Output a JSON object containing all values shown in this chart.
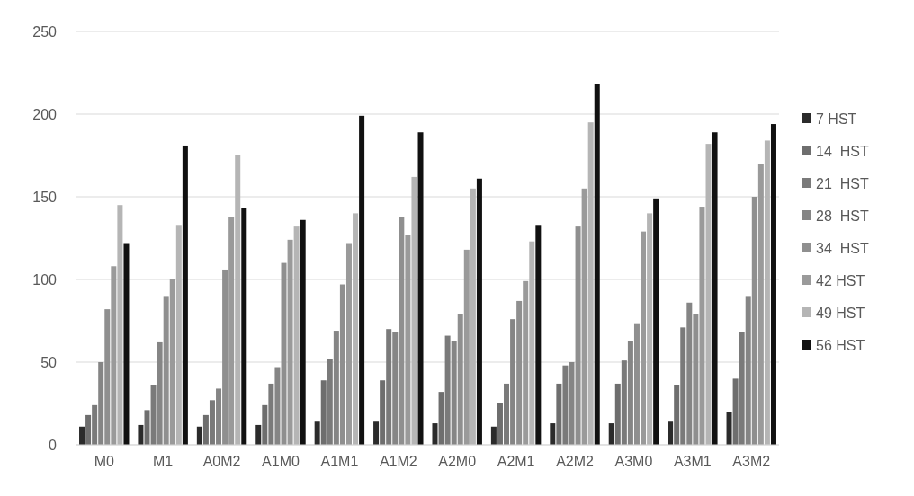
{
  "chart_data": {
    "type": "bar",
    "categories": [
      "M0",
      "M1",
      "A0M2",
      "A1M0",
      "A1M1",
      "A1M2",
      "A2M0",
      "A2M1",
      "A2M2",
      "A3M0",
      "A3M1",
      "A3M2"
    ],
    "series": [
      {
        "name": "7 HST",
        "color": "#2b2b2b",
        "values": [
          11,
          12,
          11,
          12,
          14,
          14,
          13,
          11,
          13,
          13,
          14,
          20
        ]
      },
      {
        "name": "14  HST",
        "color": "#6e6e6e",
        "values": [
          18,
          21,
          18,
          24,
          39,
          39,
          32,
          25,
          37,
          37,
          36,
          40
        ]
      },
      {
        "name": "21  HST",
        "color": "#7a7a7a",
        "values": [
          24,
          36,
          27,
          37,
          52,
          70,
          66,
          37,
          48,
          51,
          71,
          68
        ]
      },
      {
        "name": "28  HST",
        "color": "#858585",
        "values": [
          50,
          62,
          34,
          47,
          69,
          68,
          63,
          76,
          50,
          63,
          86,
          90
        ]
      },
      {
        "name": "34  HST",
        "color": "#8f8f8f",
        "values": [
          82,
          90,
          106,
          110,
          97,
          138,
          79,
          87,
          132,
          73,
          79,
          150
        ]
      },
      {
        "name": "42 HST",
        "color": "#9a9a9a",
        "values": [
          108,
          100,
          138,
          124,
          122,
          127,
          118,
          99,
          155,
          129,
          144,
          170
        ]
      },
      {
        "name": "49 HST",
        "color": "#b5b5b5",
        "values": [
          145,
          133,
          175,
          132,
          140,
          162,
          155,
          123,
          195,
          140,
          182,
          184
        ]
      },
      {
        "name": "56 HST",
        "color": "#111111",
        "values": [
          122,
          181,
          143,
          136,
          199,
          189,
          161,
          133,
          218,
          149,
          189,
          194
        ]
      }
    ],
    "ylim": [
      0,
      250
    ],
    "yticks": [
      0,
      50,
      100,
      150,
      200,
      250
    ],
    "grid": "y",
    "legend": "right"
  }
}
